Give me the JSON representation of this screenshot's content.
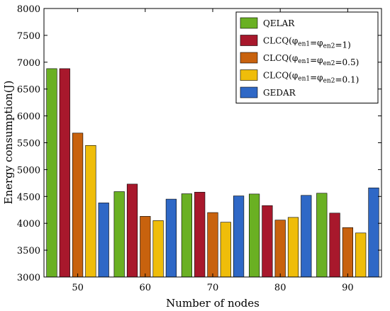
{
  "chart_data": {
    "type": "bar",
    "title": "",
    "xlabel": "Number of nodes",
    "ylabel": "Energy consumption(J)",
    "categories": [
      "50",
      "60",
      "70",
      "80",
      "90"
    ],
    "ylim": [
      3000,
      8000
    ],
    "yticks": [
      3000,
      3500,
      4000,
      4500,
      5000,
      5500,
      6000,
      6500,
      7000,
      7500,
      8000
    ],
    "grid": false,
    "legend_position": "top-right",
    "series": [
      {
        "name": "QELAR",
        "legend_parts": [
          {
            "t": "QELAR",
            "sub": false
          }
        ],
        "color": "#6ab023",
        "values": [
          6880,
          4590,
          4550,
          4545,
          4560
        ]
      },
      {
        "name": "CLCQ(φen1=φen2=1)",
        "legend_parts": [
          {
            "t": "CLCQ(φ",
            "sub": false
          },
          {
            "t": "en1",
            "sub": true
          },
          {
            "t": "=φ",
            "sub": false
          },
          {
            "t": "en2",
            "sub": true
          },
          {
            "t": "=1)",
            "sub": false
          }
        ],
        "color": "#a8182c",
        "values": [
          6880,
          4730,
          4580,
          4330,
          4190
        ]
      },
      {
        "name": "CLCQ(φen1=φen2=0.5)",
        "legend_parts": [
          {
            "t": "CLCQ(φ",
            "sub": false
          },
          {
            "t": "en1",
            "sub": true
          },
          {
            "t": "=φ",
            "sub": false
          },
          {
            "t": "en2",
            "sub": true
          },
          {
            "t": "=0.5)",
            "sub": false
          }
        ],
        "color": "#c8620e",
        "values": [
          5680,
          4130,
          4200,
          4060,
          3920
        ]
      },
      {
        "name": "CLCQ(φen1=φen2=0.1)",
        "legend_parts": [
          {
            "t": "CLCQ(φ",
            "sub": false
          },
          {
            "t": "en1",
            "sub": true
          },
          {
            "t": "=φ",
            "sub": false
          },
          {
            "t": "en2",
            "sub": true
          },
          {
            "t": "=0.1)",
            "sub": false
          }
        ],
        "color": "#efbd0a",
        "values": [
          5450,
          4050,
          4020,
          4110,
          3820
        ]
      },
      {
        "name": "GEDAR",
        "legend_parts": [
          {
            "t": "GEDAR",
            "sub": false
          }
        ],
        "color": "#2f68c6",
        "values": [
          4380,
          4450,
          4510,
          4520,
          4660
        ]
      }
    ]
  }
}
